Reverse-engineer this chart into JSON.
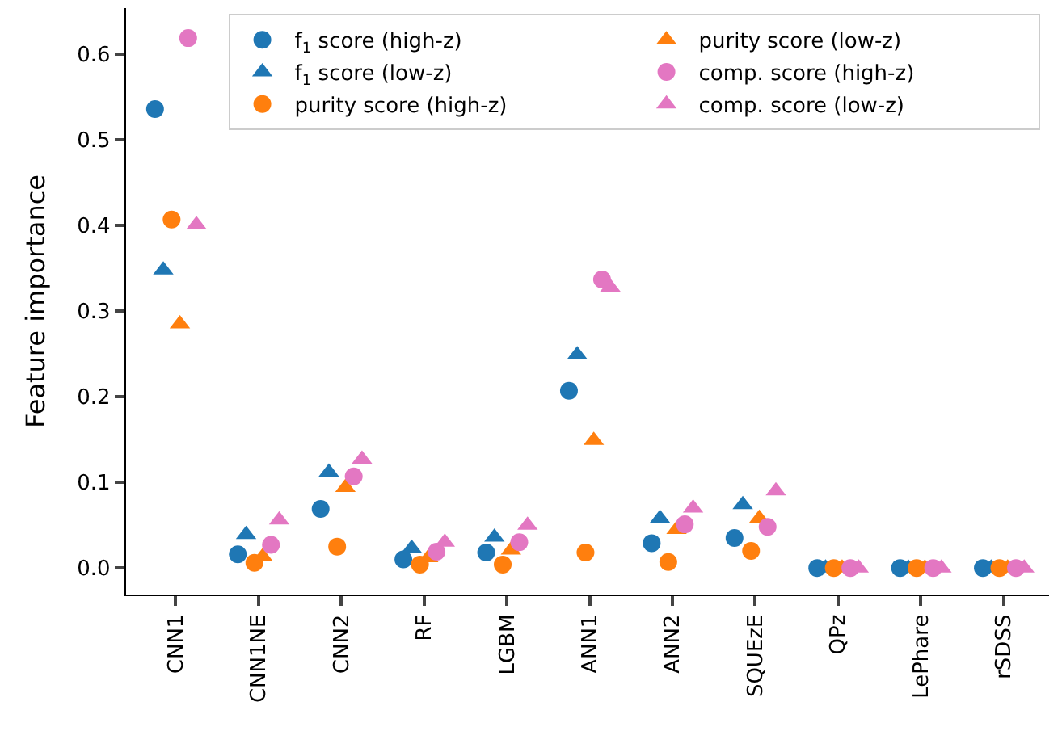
{
  "chart_data": {
    "type": "scatter",
    "ylabel": "Feature importance",
    "categories": [
      "CNN1",
      "CNN1NE",
      "CNN2",
      "RF",
      "LGBM",
      "ANN1",
      "ANN2",
      "SQUEzE",
      "QPz",
      "LePhare",
      "rSDSS"
    ],
    "series": [
      {
        "name": "f$_{1}$ score (high-z)",
        "color": "#1f77b4",
        "marker": "circle",
        "values": [
          0.536,
          0.016,
          0.069,
          0.01,
          0.018,
          0.207,
          0.029,
          0.035,
          0.0,
          0.0,
          0.0
        ]
      },
      {
        "name": "f$_{1}$ score (low-z)",
        "color": "#1f77b4",
        "marker": "triangle",
        "values": [
          0.348,
          0.039,
          0.112,
          0.023,
          0.036,
          0.249,
          0.058,
          0.074,
          0.0,
          0.0,
          0.0
        ]
      },
      {
        "name": "purity score (high-z)",
        "color": "#ff7f0e",
        "marker": "circle",
        "values": [
          0.407,
          0.006,
          0.025,
          0.004,
          0.004,
          0.018,
          0.007,
          0.02,
          0.0,
          0.0,
          0.0
        ]
      },
      {
        "name": "purity score (low-z)",
        "color": "#ff7f0e",
        "marker": "triangle",
        "values": [
          0.285,
          0.013,
          0.094,
          0.012,
          0.021,
          0.149,
          0.045,
          0.058,
          0.0,
          0.0,
          0.0
        ]
      },
      {
        "name": "comp. score (high-z)",
        "color": "#e377c2",
        "marker": "circle",
        "values": [
          0.619,
          0.027,
          0.107,
          0.019,
          0.03,
          0.337,
          0.051,
          0.048,
          0.0,
          0.0,
          0.0
        ]
      },
      {
        "name": "comp. score (low-z)",
        "color": "#e377c2",
        "marker": "triangle",
        "values": [
          0.401,
          0.056,
          0.127,
          0.03,
          0.05,
          0.328,
          0.07,
          0.09,
          0.0,
          0.0,
          0.0
        ]
      }
    ],
    "ylim": [
      -0.031,
      0.654
    ],
    "yticks": [
      {
        "value": 0,
        "label": "0.0"
      },
      0.1,
      0.2,
      0.3,
      0.4,
      0.5,
      0.6
    ],
    "legend": "top right"
  }
}
